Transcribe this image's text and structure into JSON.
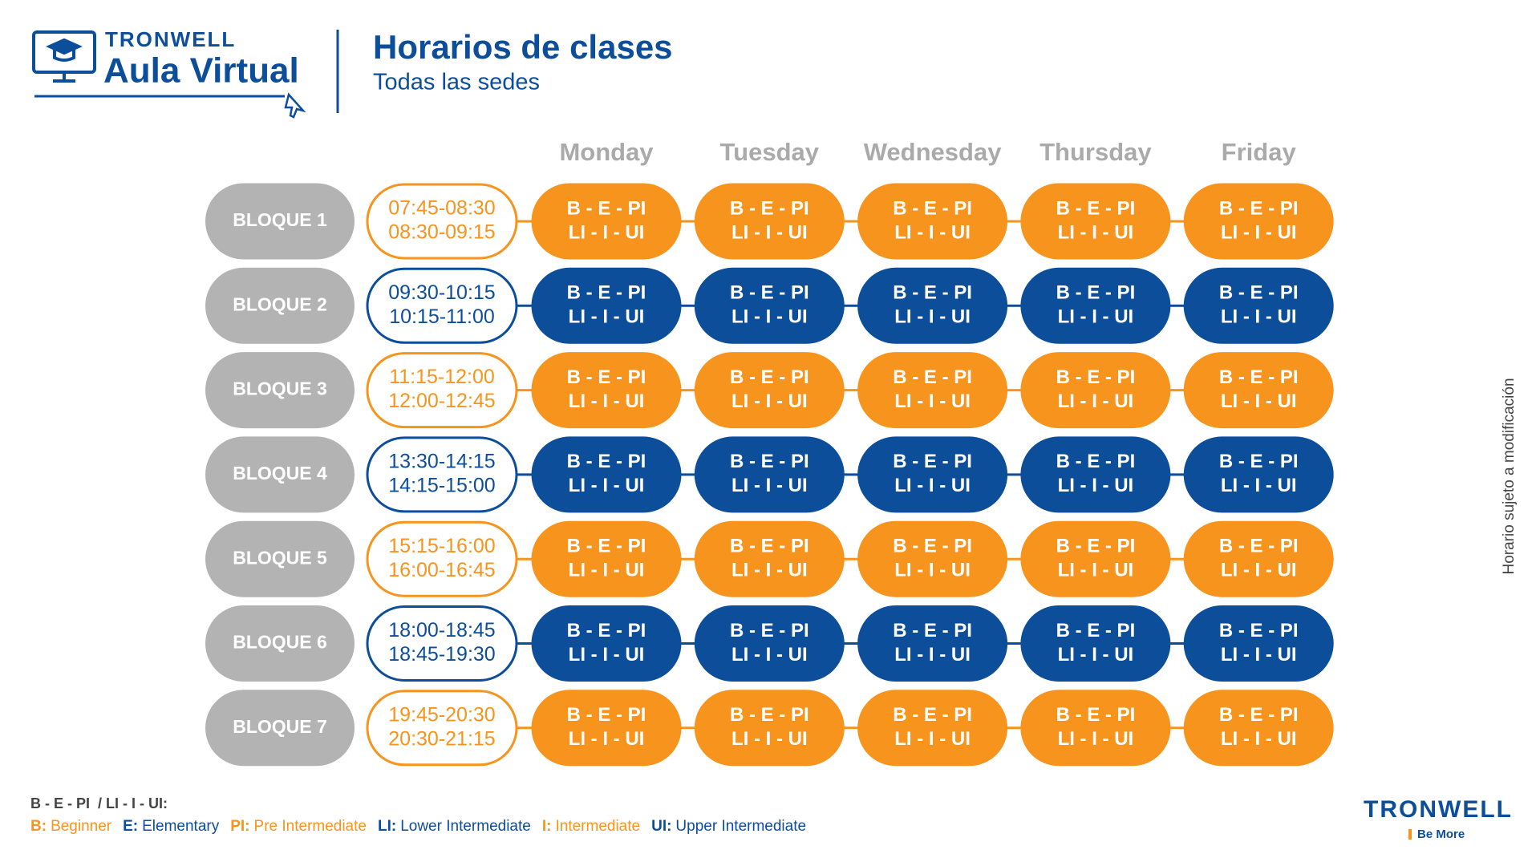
{
  "header": {
    "brand": "TRONWELL",
    "product": "Aula Virtual",
    "title": "Horarios de clases",
    "subtitle": "Todas las sedes"
  },
  "days": [
    "Monday",
    "Tuesday",
    "Wednesday",
    "Thursday",
    "Friday"
  ],
  "rows": [
    {
      "block": "BLOQUE 1",
      "color": "#f7941d",
      "times": [
        "07:45-08:30",
        "08:30-09:15"
      ],
      "cells": [
        [
          "B - E - PI",
          "LI - I - UI"
        ],
        [
          "B - E - PI",
          "LI - I - UI"
        ],
        [
          "B - E - PI",
          "LI - I - UI"
        ],
        [
          "B - E - PI",
          "LI - I - UI"
        ],
        [
          "B - E - PI",
          "LI - I - UI"
        ]
      ]
    },
    {
      "block": "BLOQUE 2",
      "color": "#0d4e9b",
      "times": [
        "09:30-10:15",
        "10:15-11:00"
      ],
      "cells": [
        [
          "B - E - PI",
          "LI - I - UI"
        ],
        [
          "B - E - PI",
          "LI - I - UI"
        ],
        [
          "B - E - PI",
          "LI - I - UI"
        ],
        [
          "B - E - PI",
          "LI - I - UI"
        ],
        [
          "B - E - PI",
          "LI - I - UI"
        ]
      ]
    },
    {
      "block": "BLOQUE 3",
      "color": "#f7941d",
      "times": [
        "11:15-12:00",
        "12:00-12:45"
      ],
      "cells": [
        [
          "B - E - PI",
          "LI - I - UI"
        ],
        [
          "B - E - PI",
          "LI - I - UI"
        ],
        [
          "B - E - PI",
          "LI - I - UI"
        ],
        [
          "B - E - PI",
          "LI - I - UI"
        ],
        [
          "B - E - PI",
          "LI - I - UI"
        ]
      ]
    },
    {
      "block": "BLOQUE 4",
      "color": "#0d4e9b",
      "times": [
        "13:30-14:15",
        "14:15-15:00"
      ],
      "cells": [
        [
          "B - E - PI",
          "LI - I - UI"
        ],
        [
          "B - E - PI",
          "LI - I - UI"
        ],
        [
          "B - E - PI",
          "LI - I - UI"
        ],
        [
          "B - E - PI",
          "LI - I - UI"
        ],
        [
          "B - E - PI",
          "LI - I - UI"
        ]
      ]
    },
    {
      "block": "BLOQUE 5",
      "color": "#f7941d",
      "times": [
        "15:15-16:00",
        "16:00-16:45"
      ],
      "cells": [
        [
          "B - E - PI",
          "LI - I - UI"
        ],
        [
          "B - E - PI",
          "LI - I - UI"
        ],
        [
          "B - E - PI",
          "LI - I - UI"
        ],
        [
          "B - E - PI",
          "LI - I - UI"
        ],
        [
          "B - E - PI",
          "LI - I - UI"
        ]
      ]
    },
    {
      "block": "BLOQUE 6",
      "color": "#0d4e9b",
      "times": [
        "18:00-18:45",
        "18:45-19:30"
      ],
      "cells": [
        [
          "B - E - PI",
          "LI - I - UI"
        ],
        [
          "B - E - PI",
          "LI - I - UI"
        ],
        [
          "B - E - PI",
          "LI - I - UI"
        ],
        [
          "B - E - PI",
          "LI - I - UI"
        ],
        [
          "B - E - PI",
          "LI - I - UI"
        ]
      ]
    },
    {
      "block": "BLOQUE 7",
      "color": "#f7941d",
      "times": [
        "19:45-20:30",
        "20:30-21:15"
      ],
      "cells": [
        [
          "B - E - PI",
          "LI - I - UI"
        ],
        [
          "B - E - PI",
          "LI - I - UI"
        ],
        [
          "B - E - PI",
          "LI - I - UI"
        ],
        [
          "B - E - PI",
          "LI - I - UI"
        ],
        [
          "B - E - PI",
          "LI - I - UI"
        ]
      ]
    }
  ],
  "legend": {
    "title": "B - E - PI  / LI - I - UI:",
    "items": [
      {
        "code": "B:",
        "name": "Beginner",
        "color": "#f7941d"
      },
      {
        "code": "E:",
        "name": "Elementary",
        "color": "#0d4e9b"
      },
      {
        "code": "PI:",
        "name": "Pre Intermediate",
        "color": "#f7941d"
      },
      {
        "code": "LI:",
        "name": "Lower Intermediate",
        "color": "#0d4e9b"
      },
      {
        "code": "I:",
        "name": "Intermediate",
        "color": "#f7941d"
      },
      {
        "code": "UI:",
        "name": "Upper Intermediate",
        "color": "#0d4e9b"
      }
    ]
  },
  "side_note": "Horario sujeto a modificación",
  "footer": {
    "brand": "TRONWELL",
    "tagline": "Be More"
  }
}
